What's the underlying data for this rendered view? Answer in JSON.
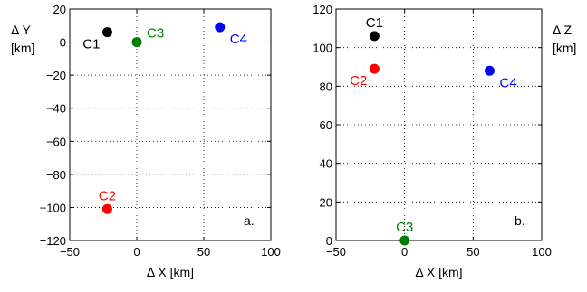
{
  "chart_data": [
    {
      "type": "scatter",
      "panel_label": "a.",
      "xlabel": "Δ X [km]",
      "ylabel_line1": "Δ Y",
      "ylabel_line2": "[km]",
      "xlim": [
        -50,
        100
      ],
      "ylim": [
        -120,
        20
      ],
      "xticks": [
        -50,
        0,
        50,
        100
      ],
      "yticks": [
        -120,
        -100,
        -80,
        -60,
        -40,
        -20,
        0,
        20
      ],
      "grid": true,
      "points": [
        {
          "name": "C1",
          "x": -22,
          "y": 6,
          "color": "#000000",
          "label_pos": "lower-left"
        },
        {
          "name": "C2",
          "x": -22,
          "y": -101,
          "color": "#ff0000",
          "label_pos": "above"
        },
        {
          "name": "C3",
          "x": 0,
          "y": 0,
          "color": "#008000",
          "label_pos": "upper-right"
        },
        {
          "name": "C4",
          "x": 62,
          "y": 9,
          "color": "#0000ff",
          "label_pos": "lower-right"
        }
      ]
    },
    {
      "type": "scatter",
      "panel_label": "b.",
      "xlabel": "Δ X [km]",
      "ylabel_line1": "Δ Z",
      "ylabel_line2": "[km]",
      "xlim": [
        -50,
        100
      ],
      "ylim": [
        0,
        120
      ],
      "xticks": [
        -50,
        0,
        50,
        100
      ],
      "yticks": [
        0,
        20,
        40,
        60,
        80,
        100,
        120
      ],
      "grid": true,
      "points": [
        {
          "name": "C1",
          "x": -22,
          "y": 106,
          "color": "#000000",
          "label_pos": "above"
        },
        {
          "name": "C2",
          "x": -22,
          "y": 89,
          "color": "#ff0000",
          "label_pos": "lower-left"
        },
        {
          "name": "C3",
          "x": 0,
          "y": 0,
          "color": "#008000",
          "label_pos": "above"
        },
        {
          "name": "C4",
          "x": 62,
          "y": 88,
          "color": "#0000ff",
          "label_pos": "lower-right"
        }
      ]
    }
  ]
}
